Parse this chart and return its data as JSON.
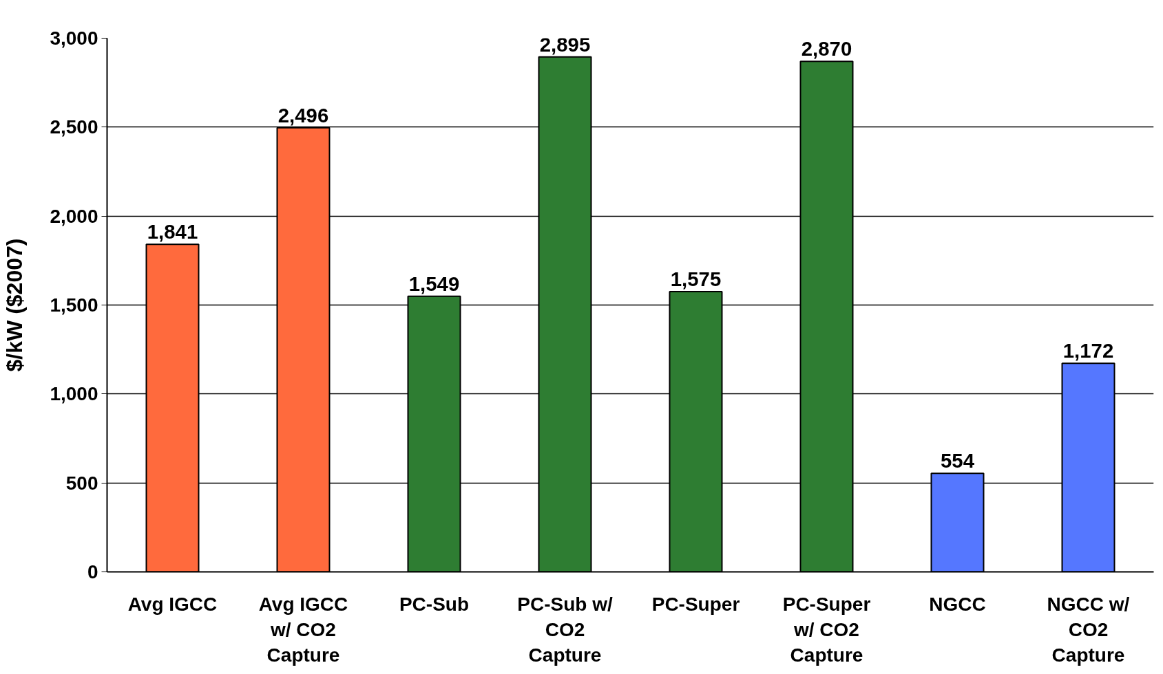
{
  "chart_data": {
    "type": "bar",
    "ylabel": "$/kW ($2007)",
    "categories": [
      "Avg IGCC",
      "Avg IGCC w/ CO2 Capture",
      "PC-Sub",
      "PC-Sub w/ CO2 Capture",
      "PC-Super",
      "PC-Super w/ CO2 Capture",
      "NGCC",
      "NGCC w/ CO2 Capture"
    ],
    "values": [
      1841,
      2496,
      1549,
      2895,
      1575,
      2870,
      554,
      1172
    ],
    "colors": [
      "#ff6a3d",
      "#ff6a3d",
      "#2e7d32",
      "#2e7d32",
      "#2e7d32",
      "#2e7d32",
      "#5577ff",
      "#5577ff"
    ],
    "value_labels": [
      "1,841",
      "2,496",
      "1,549",
      "2,895",
      "1,575",
      "2,870",
      "554",
      "1,172"
    ],
    "ylim": [
      0,
      3000
    ],
    "yticks": [
      {
        "value": 0,
        "label": "0"
      },
      {
        "value": 500,
        "label": "500"
      },
      {
        "value": 1000,
        "label": "1,000"
      },
      {
        "value": 1500,
        "label": "1,500"
      },
      {
        "value": 2000,
        "label": "2,000"
      },
      {
        "value": 2500,
        "label": "2,500"
      },
      {
        "value": 3000,
        "label": "3,000"
      }
    ],
    "grid": "y"
  }
}
